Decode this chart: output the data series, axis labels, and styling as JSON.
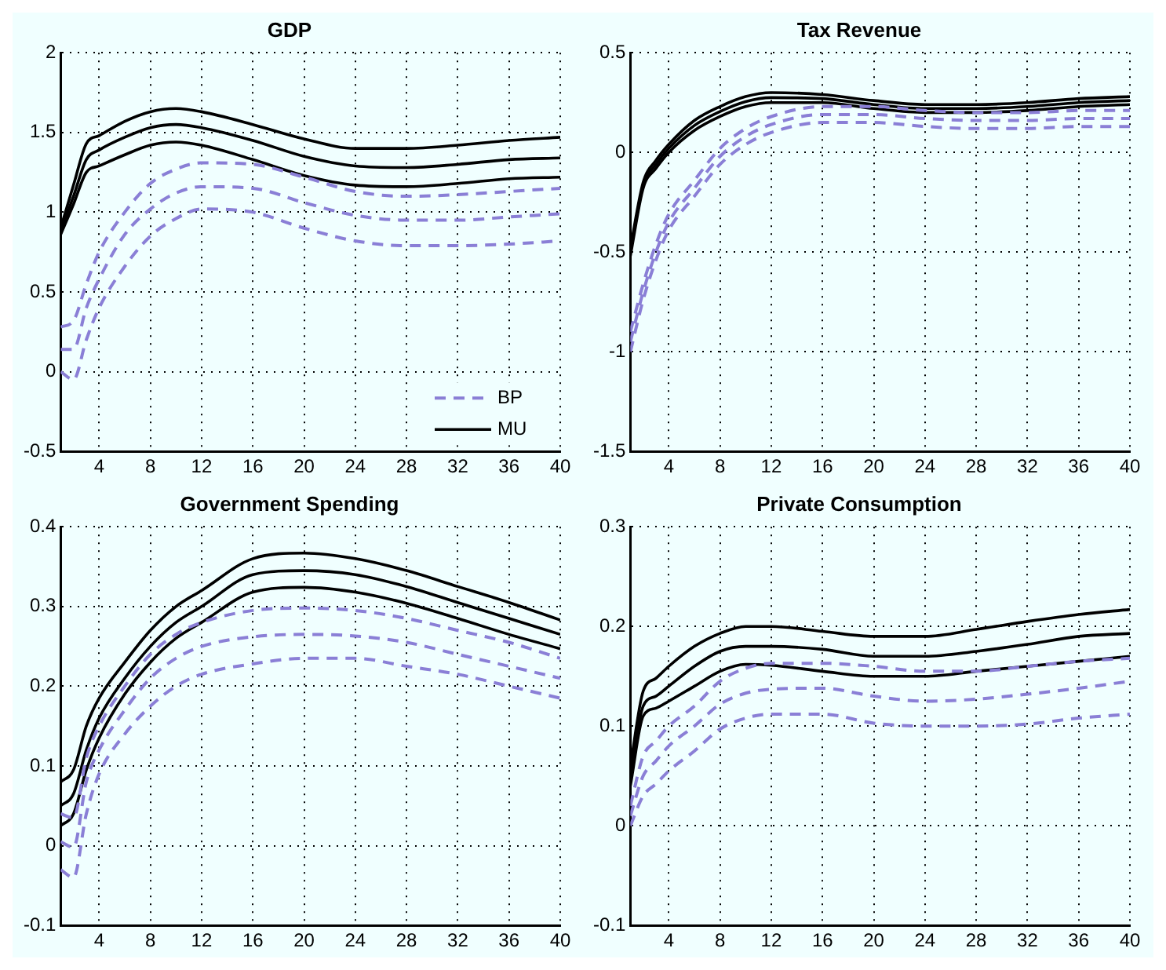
{
  "chart_data": [
    {
      "type": "line",
      "title": "GDP",
      "x": [
        1,
        2,
        3,
        4,
        6,
        8,
        10,
        12,
        16,
        20,
        24,
        28,
        32,
        36,
        40
      ],
      "xlim": [
        1,
        40
      ],
      "xticks": [
        4,
        8,
        12,
        16,
        20,
        24,
        28,
        32,
        36,
        40
      ],
      "ylim": [
        -0.5,
        2
      ],
      "yticks": [
        -0.5,
        0,
        0.5,
        1,
        1.5,
        2
      ],
      "grid": true,
      "legend": "bottom right",
      "series": [
        {
          "name": "BP",
          "color": "#8a7fd6",
          "line_style": "dashed",
          "values": [
            0.14,
            0.14,
            0.4,
            0.58,
            0.86,
            1.02,
            1.12,
            1.16,
            1.15,
            1.06,
            0.98,
            0.95,
            0.95,
            0.97,
            0.99
          ]
        },
        {
          "color": "#8a7fd6",
          "line_style": "dashed",
          "values": [
            0.28,
            0.32,
            0.55,
            0.75,
            1.0,
            1.18,
            1.27,
            1.31,
            1.3,
            1.22,
            1.13,
            1.1,
            1.11,
            1.13,
            1.15
          ]
        },
        {
          "color": "#8a7fd6",
          "line_style": "dashed",
          "values": [
            0.0,
            -0.05,
            0.2,
            0.4,
            0.66,
            0.85,
            0.96,
            1.02,
            1.0,
            0.9,
            0.82,
            0.79,
            0.79,
            0.8,
            0.82
          ]
        },
        {
          "name": "MU",
          "color": "#000000",
          "line_style": "solid",
          "values": [
            0.88,
            1.1,
            1.33,
            1.39,
            1.47,
            1.53,
            1.55,
            1.53,
            1.45,
            1.35,
            1.29,
            1.28,
            1.3,
            1.33,
            1.34
          ]
        },
        {
          "color": "#000000",
          "line_style": "solid",
          "values": [
            0.9,
            1.17,
            1.43,
            1.48,
            1.57,
            1.63,
            1.65,
            1.63,
            1.55,
            1.46,
            1.4,
            1.4,
            1.42,
            1.45,
            1.47
          ]
        },
        {
          "color": "#000000",
          "line_style": "solid",
          "values": [
            0.86,
            1.05,
            1.25,
            1.29,
            1.36,
            1.42,
            1.44,
            1.42,
            1.33,
            1.23,
            1.17,
            1.16,
            1.18,
            1.21,
            1.22
          ]
        }
      ]
    },
    {
      "type": "line",
      "title": "Tax Revenue",
      "x": [
        1,
        2,
        3,
        4,
        6,
        8,
        10,
        12,
        16,
        20,
        24,
        28,
        32,
        36,
        40
      ],
      "xlim": [
        1,
        40
      ],
      "xticks": [
        4,
        8,
        12,
        16,
        20,
        24,
        28,
        32,
        36,
        40
      ],
      "ylim": [
        -1.5,
        0.5
      ],
      "yticks": [
        -1.5,
        -1,
        -0.5,
        0,
        0.5
      ],
      "grid": true,
      "series": [
        {
          "color": "#8a7fd6",
          "line_style": "dashed",
          "values": [
            -0.95,
            -0.7,
            -0.5,
            -0.35,
            -0.18,
            -0.02,
            0.08,
            0.14,
            0.19,
            0.19,
            0.17,
            0.16,
            0.16,
            0.17,
            0.17
          ]
        },
        {
          "color": "#8a7fd6",
          "line_style": "dashed",
          "values": [
            -0.9,
            -0.66,
            -0.46,
            -0.31,
            -0.14,
            0.02,
            0.12,
            0.18,
            0.23,
            0.23,
            0.21,
            0.2,
            0.2,
            0.21,
            0.21
          ]
        },
        {
          "color": "#8a7fd6",
          "line_style": "dashed",
          "values": [
            -1.0,
            -0.74,
            -0.54,
            -0.39,
            -0.22,
            -0.06,
            0.04,
            0.1,
            0.15,
            0.15,
            0.13,
            0.12,
            0.12,
            0.13,
            0.13
          ]
        },
        {
          "color": "#000000",
          "line_style": "solid",
          "values": [
            -0.5,
            -0.165,
            -0.06,
            0.02,
            0.135,
            0.205,
            0.255,
            0.275,
            0.27,
            0.24,
            0.22,
            0.22,
            0.23,
            0.25,
            0.26
          ]
        },
        {
          "color": "#000000",
          "line_style": "solid",
          "values": [
            -0.48,
            -0.15,
            -0.04,
            0.04,
            0.16,
            0.23,
            0.28,
            0.3,
            0.29,
            0.26,
            0.24,
            0.24,
            0.25,
            0.27,
            0.28
          ]
        },
        {
          "color": "#000000",
          "line_style": "solid",
          "values": [
            -0.52,
            -0.18,
            -0.08,
            0.0,
            0.11,
            0.18,
            0.23,
            0.25,
            0.25,
            0.22,
            0.2,
            0.2,
            0.21,
            0.23,
            0.24
          ]
        }
      ]
    },
    {
      "type": "line",
      "title": "Government Spending",
      "x": [
        1,
        2,
        3,
        4,
        6,
        8,
        10,
        12,
        16,
        20,
        24,
        28,
        32,
        36,
        40
      ],
      "xlim": [
        1,
        40
      ],
      "xticks": [
        4,
        8,
        12,
        16,
        20,
        24,
        28,
        32,
        36,
        40
      ],
      "ylim": [
        -0.1,
        0.4
      ],
      "yticks": [
        -0.1,
        0,
        0.1,
        0.2,
        0.3,
        0.4
      ],
      "grid": true,
      "series": [
        {
          "color": "#8a7fd6",
          "line_style": "dashed",
          "values": [
            0.005,
            -0.002,
            0.08,
            0.12,
            0.17,
            0.21,
            0.235,
            0.25,
            0.262,
            0.265,
            0.263,
            0.255,
            0.24,
            0.225,
            0.21
          ]
        },
        {
          "color": "#8a7fd6",
          "line_style": "dashed",
          "values": [
            0.04,
            0.035,
            0.11,
            0.15,
            0.2,
            0.24,
            0.265,
            0.28,
            0.295,
            0.298,
            0.295,
            0.285,
            0.27,
            0.255,
            0.235
          ]
        },
        {
          "color": "#8a7fd6",
          "line_style": "dashed",
          "values": [
            -0.03,
            -0.04,
            0.04,
            0.09,
            0.14,
            0.175,
            0.2,
            0.215,
            0.228,
            0.235,
            0.235,
            0.225,
            0.215,
            0.2,
            0.185
          ]
        },
        {
          "color": "#000000",
          "line_style": "solid",
          "values": [
            0.05,
            0.065,
            0.12,
            0.16,
            0.21,
            0.25,
            0.28,
            0.3,
            0.34,
            0.345,
            0.34,
            0.325,
            0.305,
            0.285,
            0.265
          ]
        },
        {
          "color": "#000000",
          "line_style": "solid",
          "values": [
            0.08,
            0.095,
            0.15,
            0.185,
            0.23,
            0.27,
            0.3,
            0.32,
            0.36,
            0.367,
            0.36,
            0.345,
            0.325,
            0.305,
            0.283
          ]
        },
        {
          "color": "#000000",
          "line_style": "solid",
          "values": [
            0.025,
            0.04,
            0.095,
            0.135,
            0.19,
            0.23,
            0.26,
            0.28,
            0.318,
            0.324,
            0.318,
            0.304,
            0.285,
            0.265,
            0.247
          ]
        }
      ]
    },
    {
      "type": "line",
      "title": "Private Consumption",
      "x": [
        1,
        2,
        3,
        4,
        6,
        8,
        10,
        12,
        16,
        20,
        24,
        28,
        32,
        36,
        40
      ],
      "xlim": [
        1,
        40
      ],
      "xticks": [
        4,
        8,
        12,
        16,
        20,
        24,
        28,
        32,
        36,
        40
      ],
      "ylim": [
        -0.1,
        0.3
      ],
      "yticks": [
        -0.1,
        0,
        0.1,
        0.2,
        0.3
      ],
      "grid": true,
      "series": [
        {
          "color": "#8a7fd6",
          "line_style": "dashed",
          "values": [
            0.01,
            0.05,
            0.065,
            0.08,
            0.1,
            0.122,
            0.133,
            0.137,
            0.138,
            0.13,
            0.125,
            0.127,
            0.132,
            0.138,
            0.145
          ]
        },
        {
          "color": "#8a7fd6",
          "line_style": "dashed",
          "values": [
            0.02,
            0.07,
            0.085,
            0.1,
            0.12,
            0.145,
            0.158,
            0.163,
            0.163,
            0.16,
            0.155,
            0.155,
            0.16,
            0.165,
            0.168
          ]
        },
        {
          "color": "#8a7fd6",
          "line_style": "dashed",
          "values": [
            0.0,
            0.03,
            0.042,
            0.055,
            0.075,
            0.097,
            0.108,
            0.112,
            0.112,
            0.103,
            0.1,
            0.1,
            0.102,
            0.108,
            0.112
          ]
        },
        {
          "color": "#000000",
          "line_style": "solid",
          "values": [
            0.05,
            0.12,
            0.13,
            0.14,
            0.16,
            0.175,
            0.18,
            0.18,
            0.177,
            0.17,
            0.17,
            0.175,
            0.182,
            0.19,
            0.193
          ]
        },
        {
          "color": "#000000",
          "line_style": "solid",
          "values": [
            0.06,
            0.135,
            0.148,
            0.16,
            0.18,
            0.193,
            0.2,
            0.2,
            0.195,
            0.19,
            0.19,
            0.197,
            0.205,
            0.212,
            0.217
          ]
        },
        {
          "color": "#000000",
          "line_style": "solid",
          "values": [
            0.04,
            0.11,
            0.118,
            0.125,
            0.14,
            0.155,
            0.162,
            0.161,
            0.155,
            0.15,
            0.15,
            0.155,
            0.16,
            0.165,
            0.17
          ]
        }
      ]
    }
  ]
}
